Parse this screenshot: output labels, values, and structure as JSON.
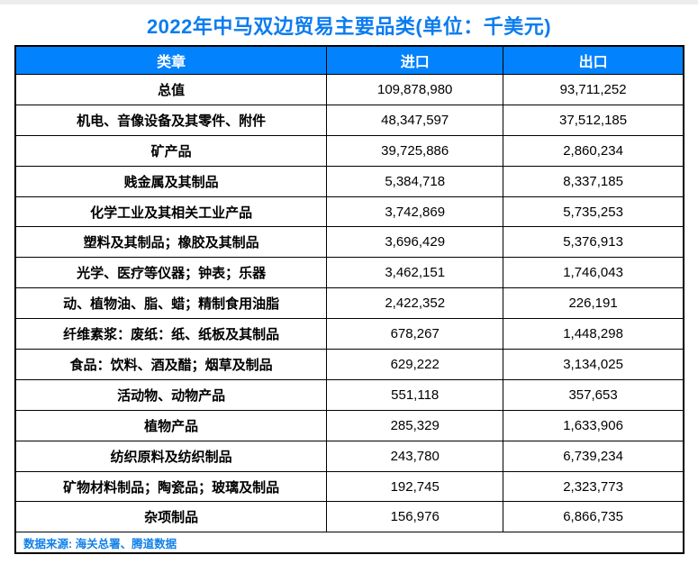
{
  "page": {
    "title": "2022年中马双边贸易主要品类(单位：千美元)"
  },
  "colors": {
    "title_text": "#0b7cf0",
    "header_bg": "#0282fd",
    "header_text": "#ffffff",
    "footer_text": "#1180e8",
    "border": "#000000"
  },
  "chart_data": {
    "type": "table",
    "title": "2022年中马双边贸易主要品类(单位：千美元)",
    "columns": [
      "类章",
      "进口",
      "出口"
    ],
    "unit": "千美元",
    "rows": [
      {
        "category": "总值",
        "import": "109,878,980",
        "export": "93,711,252"
      },
      {
        "category": "机电、音像设备及其零件、附件",
        "import": "48,347,597",
        "export": "37,512,185"
      },
      {
        "category": "矿产品",
        "import": "39,725,886",
        "export": "2,860,234"
      },
      {
        "category": "贱金属及其制品",
        "import": "5,384,718",
        "export": "8,337,185"
      },
      {
        "category": "化学工业及其相关工业产品",
        "import": "3,742,869",
        "export": "5,735,253"
      },
      {
        "category": "塑料及其制品；橡胶及其制品",
        "import": "3,696,429",
        "export": "5,376,913"
      },
      {
        "category": "光学、医疗等仪器；钟表；乐器",
        "import": "3,462,151",
        "export": "1,746,043"
      },
      {
        "category": "动、植物油、脂、蜡；精制食用油脂",
        "import": "2,422,352",
        "export": "226,191"
      },
      {
        "category": "纤维素浆：废纸：纸、纸板及其制品",
        "import": "678,267",
        "export": "1,448,298"
      },
      {
        "category": "食品：饮料、酒及醋；烟草及制品",
        "import": "629,222",
        "export": "3,134,025"
      },
      {
        "category": "活动物、动物产品",
        "import": "551,118",
        "export": "357,653"
      },
      {
        "category": "植物产品",
        "import": "285,329",
        "export": "1,633,906"
      },
      {
        "category": "纺织原料及纺织制品",
        "import": "243,780",
        "export": "6,739,234"
      },
      {
        "category": "矿物材料制品；陶瓷品；玻璃及制品",
        "import": "192,745",
        "export": "2,323,773"
      },
      {
        "category": "杂项制品",
        "import": "156,976",
        "export": "6,866,735"
      }
    ],
    "import_values": [
      109878980,
      48347597,
      39725886,
      5384718,
      3742869,
      3696429,
      3462151,
      2422352,
      678267,
      629222,
      551118,
      285329,
      243780,
      192745,
      156976
    ],
    "export_values": [
      93711252,
      37512185,
      2860234,
      8337185,
      5735253,
      5376913,
      1746043,
      226191,
      1448298,
      3134025,
      357653,
      1633906,
      6739234,
      2323773,
      6866735
    ],
    "footer": "数据来源: 海关总署、腾道数据",
    "legend_position": "none",
    "grid": true
  }
}
